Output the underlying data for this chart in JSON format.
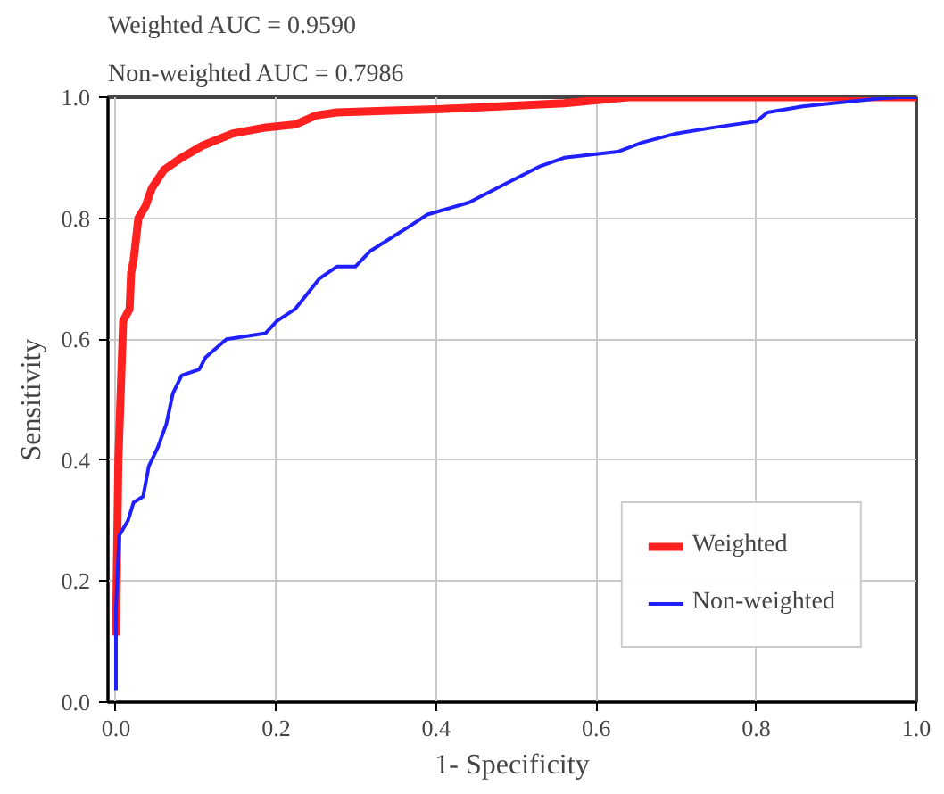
{
  "chart_data": {
    "type": "line",
    "annotations": [
      "Weighted AUC = 0.9590",
      "Non-weighted AUC = 0.7986"
    ],
    "xlabel": "1- Specificity",
    "ylabel": "Sensitivity",
    "xlim": [
      -0.01,
      1.0
    ],
    "ylim": [
      0,
      1.0
    ],
    "xticks": [
      {
        "value": 0,
        "label": "0.0"
      },
      {
        "value": 0.2,
        "label": "0.2"
      },
      {
        "value": 0.4,
        "label": "0.4"
      },
      {
        "value": 0.6,
        "label": "0.6"
      },
      {
        "value": 0.8,
        "label": "0.8"
      },
      {
        "value": 1.0,
        "label": "1.0"
      }
    ],
    "yticks": [
      {
        "value": 0,
        "label": "0.0"
      },
      {
        "value": 0.2,
        "label": "0.2"
      },
      {
        "value": 0.4,
        "label": "0.4"
      },
      {
        "value": 0.6,
        "label": "0.6"
      },
      {
        "value": 0.8,
        "label": "0.8"
      },
      {
        "value": 1.0,
        "label": "1.0"
      }
    ],
    "grid": true,
    "legend": "bottom right",
    "line_style": "solid",
    "series": [
      {
        "name": "Weighted",
        "color": "#ff2020",
        "x": [
          0,
          0.003,
          0.009,
          0.017,
          0.019,
          0.022,
          0.028,
          0.037,
          0.045,
          0.06,
          0.082,
          0.108,
          0.146,
          0.187,
          0.224,
          0.25,
          0.276,
          0.343,
          0.4,
          0.56,
          0.64,
          1.0
        ],
        "values": [
          0.11,
          0.4,
          0.63,
          0.65,
          0.71,
          0.73,
          0.8,
          0.82,
          0.85,
          0.88,
          0.9,
          0.92,
          0.94,
          0.95,
          0.955,
          0.97,
          0.975,
          0.978,
          0.98,
          0.99,
          1.0,
          1.0
        ]
      },
      {
        "name": "Non-weighted",
        "color": "#2020ff",
        "x": [
          0,
          0,
          0.004,
          0.015,
          0.022,
          0.034,
          0.041,
          0.052,
          0.063,
          0.071,
          0.082,
          0.104,
          0.112,
          0.138,
          0.187,
          0.201,
          0.224,
          0.254,
          0.276,
          0.299,
          0.318,
          0.366,
          0.389,
          0.441,
          0.478,
          0.53,
          0.56,
          0.627,
          0.657,
          0.7,
          0.747,
          0.8,
          0.814,
          0.858,
          0.955,
          0.98,
          1.0
        ],
        "values": [
          0.02,
          0.155,
          0.275,
          0.3,
          0.33,
          0.34,
          0.39,
          0.42,
          0.46,
          0.51,
          0.54,
          0.55,
          0.57,
          0.6,
          0.61,
          0.63,
          0.65,
          0.7,
          0.72,
          0.72,
          0.746,
          0.786,
          0.806,
          0.826,
          0.851,
          0.886,
          0.9,
          0.91,
          0.925,
          0.94,
          0.95,
          0.96,
          0.975,
          0.985,
          0.998,
          1.0,
          1.0
        ]
      }
    ]
  }
}
